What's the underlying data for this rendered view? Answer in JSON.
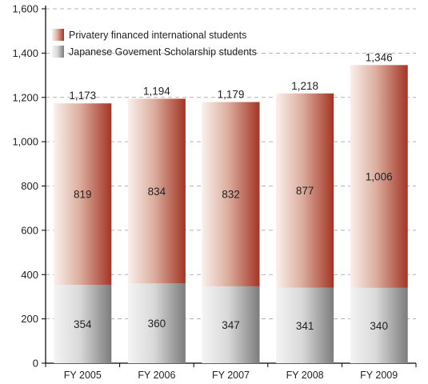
{
  "chart_data": {
    "type": "bar",
    "stacked": true,
    "categories": [
      "FY 2005",
      "FY 2006",
      "FY 2007",
      "FY 2008",
      "FY 2009"
    ],
    "series": [
      {
        "name": "Japanese Govement Scholarship students",
        "values": [
          354,
          360,
          347,
          341,
          340
        ],
        "value_labels": [
          "354",
          "360",
          "347",
          "341",
          "340"
        ],
        "color": "#8a8a8a"
      },
      {
        "name": "Privatery financed international students",
        "values": [
          819,
          834,
          832,
          877,
          1006
        ],
        "value_labels": [
          "819",
          "834",
          "832",
          "877",
          "1,006"
        ],
        "color": "#a63a2e"
      }
    ],
    "totals": [
      1173,
      1194,
      1179,
      1218,
      1346
    ],
    "total_labels": [
      "1,173",
      "1,194",
      "1,179",
      "1,218",
      "1,346"
    ],
    "ylim": [
      0,
      1600
    ],
    "yticks": [
      0,
      200,
      400,
      600,
      800,
      1000,
      1200,
      1400,
      1600
    ],
    "ytick_labels": [
      "0",
      "200",
      "400",
      "600",
      "800",
      "1,000",
      "1,200",
      "1,400",
      "1,600"
    ],
    "grid": true,
    "legend_position": "top-left",
    "title": "",
    "xlabel": "",
    "ylabel": ""
  }
}
